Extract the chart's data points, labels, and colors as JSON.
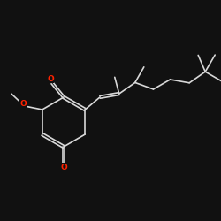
{
  "background_color": "#111111",
  "bond_color": "#d8d8d8",
  "O_color": "#ff2200",
  "bond_width": 1.2,
  "figsize": [
    2.5,
    2.5
  ],
  "dpi": 100,
  "xlim": [
    0,
    250
  ],
  "ylim": [
    0,
    250
  ]
}
